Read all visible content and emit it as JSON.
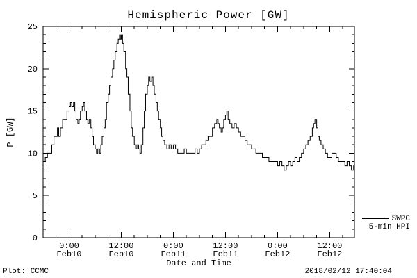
{
  "title": "Hemispheric Power [GW]",
  "legend": {
    "series_label": "SWPC",
    "series_sublabel": "5-min HPI"
  },
  "footer": {
    "credit": "Plot: CCMC",
    "timestamp": "2018/02/12 17:40:04"
  },
  "chart_data": {
    "type": "line",
    "title": "Hemispheric Power [GW]",
    "xlabel": "Date and Time",
    "ylabel": "P [GW]",
    "ylim": [
      0,
      25
    ],
    "yticks": [
      0,
      5,
      10,
      15,
      20,
      25
    ],
    "y_minor_step": 1,
    "xlim_hours": [
      0,
      71.7
    ],
    "x_minor_step_hours": 3,
    "xticks": [
      {
        "t": 6,
        "time": "0:00",
        "date": "Feb10"
      },
      {
        "t": 18,
        "time": "12:00",
        "date": "Feb10"
      },
      {
        "t": 30,
        "time": "0:00",
        "date": "Feb11"
      },
      {
        "t": 42,
        "time": "12:00",
        "date": "Feb11"
      },
      {
        "t": 54,
        "time": "0:00",
        "date": "Feb12"
      },
      {
        "t": 66,
        "time": "12:00",
        "date": "Feb12"
      }
    ],
    "grid": false,
    "legend_position": "outside-right-bottom",
    "axis_color": "#000000",
    "background": "#ffffff",
    "series": [
      {
        "name": "SWPC 5-min HPI",
        "color": "#000000",
        "points": [
          [
            0,
            9
          ],
          [
            0.5,
            9.5
          ],
          [
            1,
            10
          ],
          [
            1.5,
            10
          ],
          [
            2,
            11
          ],
          [
            2.5,
            12
          ],
          [
            3,
            12
          ],
          [
            3.3,
            13
          ],
          [
            3.6,
            12
          ],
          [
            4,
            13
          ],
          [
            4.5,
            14
          ],
          [
            5,
            14
          ],
          [
            5.5,
            15
          ],
          [
            6,
            15.5
          ],
          [
            6.3,
            16
          ],
          [
            6.6,
            15.5
          ],
          [
            7,
            16
          ],
          [
            7.3,
            15
          ],
          [
            7.6,
            14
          ],
          [
            8,
            13.5
          ],
          [
            8.3,
            14
          ],
          [
            8.6,
            15
          ],
          [
            9,
            15.5
          ],
          [
            9.3,
            16
          ],
          [
            9.6,
            15
          ],
          [
            10,
            14
          ],
          [
            10.3,
            13.5
          ],
          [
            10.6,
            14
          ],
          [
            11,
            13
          ],
          [
            11.3,
            12
          ],
          [
            11.6,
            11
          ],
          [
            12,
            10.5
          ],
          [
            12.3,
            10
          ],
          [
            12.6,
            10.5
          ],
          [
            13,
            10
          ],
          [
            13.3,
            11
          ],
          [
            13.6,
            12
          ],
          [
            14,
            13
          ],
          [
            14.3,
            14
          ],
          [
            14.6,
            16
          ],
          [
            15,
            17
          ],
          [
            15.3,
            18
          ],
          [
            15.6,
            19
          ],
          [
            16,
            20
          ],
          [
            16.3,
            21
          ],
          [
            16.6,
            22
          ],
          [
            17,
            23
          ],
          [
            17.3,
            23.5
          ],
          [
            17.6,
            24
          ],
          [
            17.8,
            23.5
          ],
          [
            18,
            24
          ],
          [
            18.3,
            23
          ],
          [
            18.6,
            22
          ],
          [
            19,
            20
          ],
          [
            19.3,
            19
          ],
          [
            19.6,
            17
          ],
          [
            20,
            15
          ],
          [
            20.3,
            13
          ],
          [
            20.6,
            12
          ],
          [
            21,
            11
          ],
          [
            21.3,
            10.5
          ],
          [
            21.6,
            11
          ],
          [
            22,
            10.5
          ],
          [
            22.3,
            10
          ],
          [
            22.6,
            11
          ],
          [
            23,
            13
          ],
          [
            23.3,
            15
          ],
          [
            23.6,
            17
          ],
          [
            24,
            18
          ],
          [
            24.3,
            19
          ],
          [
            24.6,
            18.5
          ],
          [
            25,
            19
          ],
          [
            25.3,
            18
          ],
          [
            25.6,
            17
          ],
          [
            26,
            16
          ],
          [
            26.3,
            15
          ],
          [
            26.6,
            14
          ],
          [
            27,
            13
          ],
          [
            27.3,
            12
          ],
          [
            27.6,
            11.5
          ],
          [
            28,
            11
          ],
          [
            28.5,
            10.5
          ],
          [
            29,
            11
          ],
          [
            29.5,
            10.5
          ],
          [
            30,
            11
          ],
          [
            30.5,
            10.5
          ],
          [
            31,
            10
          ],
          [
            31.5,
            10
          ],
          [
            32,
            10
          ],
          [
            32.5,
            10.5
          ],
          [
            33,
            10
          ],
          [
            33.5,
            10
          ],
          [
            34,
            10
          ],
          [
            34.5,
            10
          ],
          [
            35,
            10.5
          ],
          [
            35.5,
            10
          ],
          [
            36,
            10.5
          ],
          [
            36.5,
            11
          ],
          [
            37,
            11
          ],
          [
            37.5,
            11.5
          ],
          [
            38,
            12
          ],
          [
            38.5,
            12
          ],
          [
            39,
            13
          ],
          [
            39.5,
            13.5
          ],
          [
            40,
            14
          ],
          [
            40.3,
            13.5
          ],
          [
            40.6,
            13
          ],
          [
            41,
            12.5
          ],
          [
            41.3,
            13
          ],
          [
            41.6,
            14
          ],
          [
            42,
            14.5
          ],
          [
            42.3,
            15
          ],
          [
            42.6,
            14
          ],
          [
            43,
            13.5
          ],
          [
            43.5,
            13
          ],
          [
            44,
            13.5
          ],
          [
            44.5,
            13
          ],
          [
            45,
            12.5
          ],
          [
            45.5,
            12
          ],
          [
            46,
            12
          ],
          [
            46.5,
            11.5
          ],
          [
            47,
            11
          ],
          [
            47.5,
            11
          ],
          [
            48,
            10.5
          ],
          [
            48.5,
            10.5
          ],
          [
            49,
            10
          ],
          [
            49.5,
            10
          ],
          [
            50,
            10
          ],
          [
            50.5,
            9.5
          ],
          [
            51,
            9.5
          ],
          [
            51.5,
            9.5
          ],
          [
            52,
            9
          ],
          [
            52.5,
            9
          ],
          [
            53,
            9
          ],
          [
            53.5,
            9
          ],
          [
            54,
            8.5
          ],
          [
            54.5,
            9
          ],
          [
            55,
            8.5
          ],
          [
            55.5,
            8
          ],
          [
            56,
            8.5
          ],
          [
            56.5,
            9
          ],
          [
            57,
            8.5
          ],
          [
            57.5,
            9
          ],
          [
            58,
            9.5
          ],
          [
            58.5,
            9
          ],
          [
            59,
            9.5
          ],
          [
            59.5,
            10
          ],
          [
            60,
            10.5
          ],
          [
            60.5,
            11
          ],
          [
            61,
            11.5
          ],
          [
            61.5,
            12
          ],
          [
            62,
            13
          ],
          [
            62.3,
            13.5
          ],
          [
            62.6,
            14
          ],
          [
            63,
            13
          ],
          [
            63.3,
            12
          ],
          [
            63.6,
            11.5
          ],
          [
            64,
            11
          ],
          [
            64.5,
            10.5
          ],
          [
            65,
            10
          ],
          [
            65.5,
            9.5
          ],
          [
            66,
            9.5
          ],
          [
            66.5,
            10
          ],
          [
            67,
            10
          ],
          [
            67.5,
            9.5
          ],
          [
            68,
            9
          ],
          [
            68.5,
            9
          ],
          [
            69,
            9
          ],
          [
            69.5,
            8.5
          ],
          [
            70,
            9
          ],
          [
            70.5,
            8.5
          ],
          [
            71,
            8
          ],
          [
            71.5,
            8.5
          ]
        ]
      }
    ]
  }
}
